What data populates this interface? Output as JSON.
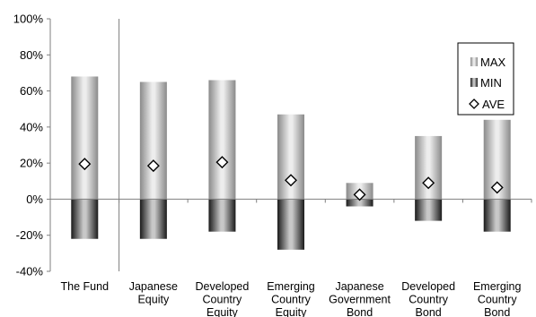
{
  "chart_data": {
    "type": "bar",
    "subtype": "range-bar",
    "categories": [
      [
        "The Fund"
      ],
      [
        "Japanese",
        "Equity"
      ],
      [
        "Developed",
        "Country",
        "Equity"
      ],
      [
        "Emerging",
        "Country",
        "Equity"
      ],
      [
        "Japanese",
        "Government",
        "Bond"
      ],
      [
        "Developed",
        "Country",
        "Bond"
      ],
      [
        "Emerging",
        "Country",
        "Bond"
      ]
    ],
    "series": [
      {
        "name": "MAX",
        "values": [
          68,
          65,
          66,
          47,
          9,
          35,
          44
        ]
      },
      {
        "name": "MIN",
        "values": [
          -22,
          -22,
          -18,
          -28,
          -4,
          -12,
          -18
        ]
      },
      {
        "name": "AVE",
        "values": [
          19.5,
          18.5,
          20.5,
          10.5,
          2.5,
          9,
          6.5
        ]
      }
    ],
    "ylim": [
      -40,
      100
    ],
    "yticks": [
      -40,
      -20,
      0,
      20,
      40,
      60,
      80,
      100
    ],
    "ytick_labels": [
      "-40%",
      "-20%",
      "0%",
      "20%",
      "40%",
      "60%",
      "80%",
      "100%"
    ],
    "legend": {
      "position": "top-right",
      "entries": [
        "MAX",
        "MIN",
        "AVE"
      ]
    },
    "grid": false,
    "title": "",
    "xlabel": "",
    "ylabel": ""
  }
}
